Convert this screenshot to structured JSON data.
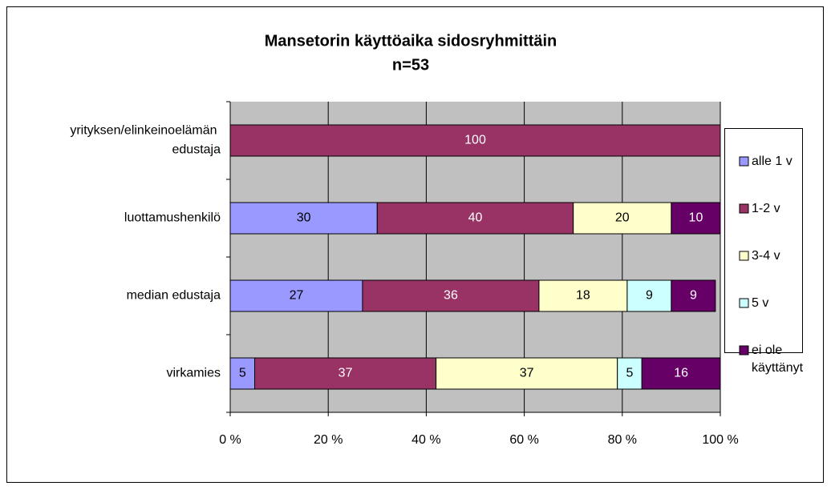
{
  "chart_data": {
    "type": "stacked_barh",
    "title": "Mansetorin käyttöaika sidosryhmittäin",
    "subtitle": "n=53",
    "categories": [
      "yrityksen/elinkeinoelämän edustaja",
      "luottamushenkilö",
      "median edustaja",
      "virkamies"
    ],
    "series": [
      {
        "name": "alle 1 v",
        "color": "#9999ff",
        "values": [
          null,
          30,
          27,
          5
        ]
      },
      {
        "name": "1-2 v",
        "color": "#993366",
        "values": [
          100,
          40,
          36,
          37
        ]
      },
      {
        "name": "3-4 v",
        "color": "#ffffcc",
        "values": [
          null,
          20,
          18,
          37
        ]
      },
      {
        "name": "5 v",
        "color": "#ccffff",
        "values": [
          null,
          null,
          9,
          5
        ]
      },
      {
        "name": "ei ole käyttänyt",
        "color": "#660066",
        "values": [
          null,
          10,
          9,
          16
        ]
      }
    ],
    "xlim": [
      0,
      100
    ],
    "xticks": [
      {
        "value": 0,
        "label": "0 %"
      },
      {
        "value": 20,
        "label": "20 %"
      },
      {
        "value": 40,
        "label": "40 %"
      },
      {
        "value": 60,
        "label": "60 %"
      },
      {
        "value": 80,
        "label": "80 %"
      },
      {
        "value": 100,
        "label": "100 %"
      }
    ],
    "grid": true,
    "legend": "right",
    "plot_background": "#c0c0c0"
  }
}
